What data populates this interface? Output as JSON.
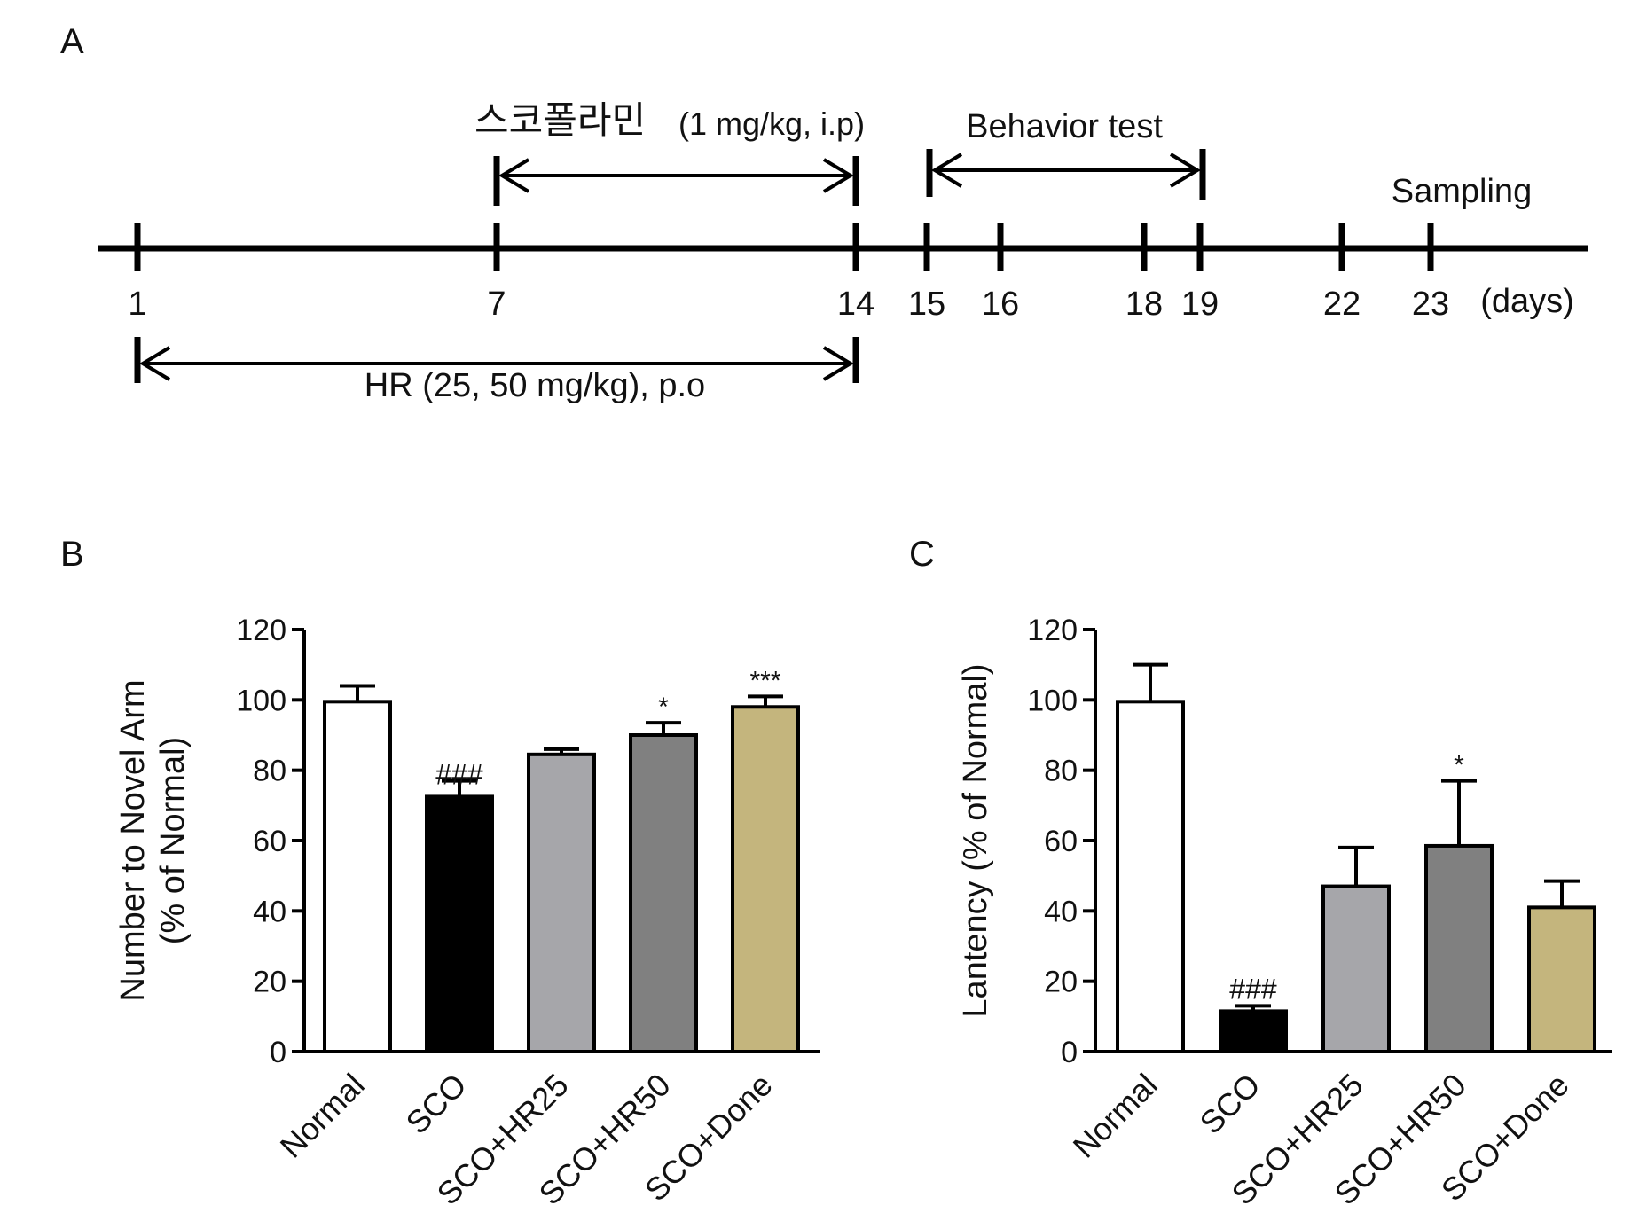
{
  "panels": {
    "a": {
      "label": "A",
      "scopolamine_label": "스코폴라민",
      "scopolamine_dose": "(1 mg/kg, i.p)",
      "behavior_label": "Behavior test",
      "sampling_label": "Sampling",
      "hr_label": "HR (25, 50 mg/kg), p.o",
      "days_unit": "(days)",
      "ticks": [
        "1",
        "7",
        "14",
        "15",
        "16",
        "18",
        "19",
        "22",
        "23"
      ]
    },
    "b": {
      "label": "B"
    },
    "c": {
      "label": "C"
    }
  },
  "chart_data": [
    {
      "type": "bar",
      "panel": "B",
      "ylabel": [
        "Number to Novel Arm",
        "(% of Normal)"
      ],
      "ylim": [
        0,
        120
      ],
      "yticks": [
        0,
        20,
        40,
        60,
        80,
        100,
        120
      ],
      "categories": [
        "Normal",
        "SCO",
        "SCO+HR25",
        "SCO+HR50",
        "SCO+Done"
      ],
      "values": [
        99.5,
        72.5,
        84.5,
        90,
        98
      ],
      "errors": [
        4.5,
        4.5,
        1.5,
        3.5,
        3
      ],
      "annotations": [
        "",
        "###",
        "",
        "*",
        "***"
      ],
      "colors": [
        "#ffffff",
        "#000000",
        "#a6a6aa",
        "#808080",
        "#c4b57d"
      ]
    },
    {
      "type": "bar",
      "panel": "C",
      "ylabel": [
        "Lantency (% of Normal)"
      ],
      "ylim": [
        0,
        120
      ],
      "yticks": [
        0,
        20,
        40,
        60,
        80,
        100,
        120
      ],
      "categories": [
        "Normal",
        "SCO",
        "SCO+HR25",
        "SCO+HR50",
        "SCO+Done"
      ],
      "values": [
        99.5,
        11.5,
        47,
        58.5,
        41
      ],
      "errors": [
        10.5,
        1.5,
        11,
        18.5,
        7.5
      ],
      "annotations": [
        "",
        "###",
        "",
        "*",
        ""
      ],
      "colors": [
        "#ffffff",
        "#000000",
        "#a6a6aa",
        "#808080",
        "#c4b57d"
      ]
    }
  ]
}
